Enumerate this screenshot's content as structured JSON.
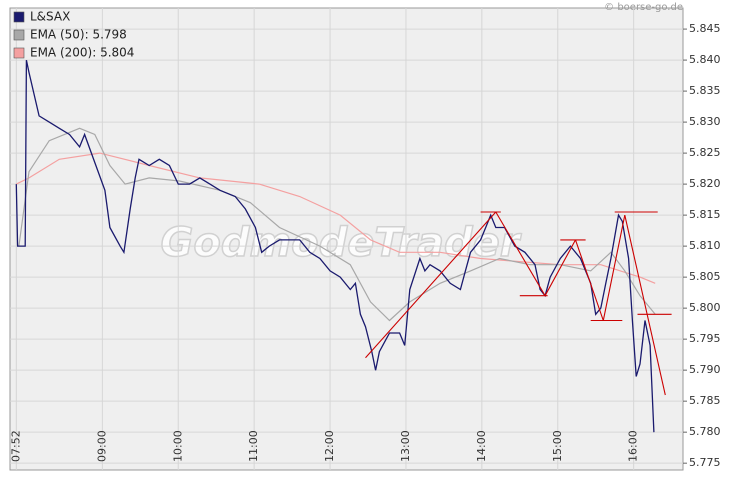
{
  "chart_data": {
    "type": "line",
    "watermark": "GodmodeTrader",
    "copyright": "© boerse-go.de",
    "xlim": [
      "07:47",
      "16:39"
    ],
    "xticks": [
      "07:52",
      "09:00",
      "10:00",
      "11:00",
      "12:00",
      "13:00",
      "14:00",
      "15:00",
      "16:00"
    ],
    "ylim": [
      5.7739,
      5.8484
    ],
    "yticks": [
      5.775,
      {
        "value": 5.78,
        "label": "5.780"
      },
      5.785,
      {
        "value": 5.79,
        "label": "5.790"
      },
      5.795,
      {
        "value": 5.8,
        "label": "5.800"
      },
      5.805,
      {
        "value": 5.81,
        "label": "5.810"
      },
      5.815,
      {
        "value": 5.82,
        "label": "5.820"
      },
      5.825,
      {
        "value": 5.83,
        "label": "5.830"
      },
      5.835,
      {
        "value": 5.84,
        "label": "5.840"
      },
      5.845
    ],
    "grid": true,
    "legend": "top-left",
    "series": [
      {
        "name": "L&SAX",
        "color": "#1a1a6e",
        "x": [
          "07:52",
          "07:53",
          "07:59",
          "08:00",
          "08:02",
          "08:10",
          "08:18",
          "08:26",
          "08:34",
          "08:42",
          "08:46",
          "09:02",
          "09:06",
          "09:14",
          "09:17",
          "09:22",
          "09:26",
          "09:29",
          "09:37",
          "09:45",
          "09:53",
          "10:00",
          "10:09",
          "10:17",
          "10:25",
          "10:33",
          "10:45",
          "10:53",
          "11:01",
          "11:06",
          "11:12",
          "11:20",
          "11:28",
          "11:36",
          "11:44",
          "11:52",
          "12:00",
          "12:08",
          "12:16",
          "12:20",
          "12:24",
          "12:28",
          "12:33",
          "12:36",
          "12:39",
          "12:47",
          "12:55",
          "12:59",
          "13:03",
          "13:11",
          "13:15",
          "13:19",
          "13:27",
          "13:35",
          "13:43",
          "13:47",
          "13:51",
          "13:59",
          "14:03",
          "14:07",
          "14:11",
          "14:18",
          "14:26",
          "14:34",
          "14:42",
          "14:46",
          "14:50",
          "14:54",
          "15:02",
          "15:10",
          "15:18",
          "15:26",
          "15:30",
          "15:34",
          "15:38",
          "15:42",
          "15:48",
          "15:51",
          "15:56",
          "15:59",
          "16:02",
          "16:05",
          "16:09",
          "16:13",
          "16:16"
        ],
        "values": [
          5.82,
          5.81,
          5.81,
          5.84,
          5.838,
          5.831,
          5.83,
          5.829,
          5.828,
          5.826,
          5.828,
          5.819,
          5.813,
          5.81,
          5.809,
          5.816,
          5.821,
          5.824,
          5.823,
          5.824,
          5.823,
          5.82,
          5.82,
          5.821,
          5.82,
          5.819,
          5.818,
          5.816,
          5.813,
          5.809,
          5.81,
          5.811,
          5.811,
          5.811,
          5.809,
          5.808,
          5.806,
          5.805,
          5.803,
          5.804,
          5.799,
          5.797,
          5.793,
          5.79,
          5.793,
          5.796,
          5.796,
          5.794,
          5.803,
          5.808,
          5.806,
          5.807,
          5.806,
          5.804,
          5.803,
          5.806,
          5.809,
          5.811,
          5.813,
          5.815,
          5.813,
          5.813,
          5.81,
          5.809,
          5.807,
          5.803,
          5.802,
          5.805,
          5.808,
          5.81,
          5.808,
          5.804,
          5.799,
          5.8,
          5.804,
          5.808,
          5.815,
          5.814,
          5.808,
          5.798,
          5.789,
          5.791,
          5.798,
          5.794,
          5.78
        ]
      },
      {
        "name": "EMA (50): 5.798",
        "color": "#a8a8a8",
        "x": [
          "07:54",
          "08:02",
          "08:18",
          "08:42",
          "08:54",
          "09:06",
          "09:18",
          "09:37",
          "10:01",
          "10:33",
          "10:57",
          "11:20",
          "11:52",
          "12:16",
          "12:32",
          "12:47",
          "13:03",
          "13:27",
          "13:51",
          "14:14",
          "14:38",
          "15:02",
          "15:26",
          "15:42",
          "15:53",
          "16:05",
          "16:17"
        ],
        "values": [
          5.81,
          5.822,
          5.827,
          5.829,
          5.828,
          5.823,
          5.82,
          5.821,
          5.8205,
          5.819,
          5.817,
          5.813,
          5.81,
          5.807,
          5.801,
          5.798,
          5.801,
          5.804,
          5.806,
          5.808,
          5.807,
          5.807,
          5.806,
          5.809,
          5.806,
          5.802,
          5.799
        ]
      },
      {
        "name": "EMA (200): 5.804",
        "color": "#f4a0a0",
        "x": [
          "07:52",
          "08:02",
          "08:26",
          "08:58",
          "09:37",
          "10:17",
          "11:04",
          "11:36",
          "12:08",
          "12:32",
          "12:55",
          "13:27",
          "13:59",
          "14:30",
          "15:02",
          "15:34",
          "16:05",
          "16:17"
        ],
        "values": [
          5.82,
          5.821,
          5.824,
          5.825,
          5.823,
          5.821,
          5.82,
          5.818,
          5.815,
          5.811,
          5.809,
          5.809,
          5.808,
          5.8075,
          5.807,
          5.807,
          5.805,
          5.804
        ]
      }
    ],
    "trend_lines": {
      "color": "#cc0000",
      "lines": [
        {
          "x": [
            "12:28",
            "14:11"
          ],
          "y": [
            5.792,
            5.8155
          ]
        },
        {
          "x": [
            "13:59",
            "14:15"
          ],
          "y": [
            5.8155,
            5.8155
          ]
        },
        {
          "x": [
            "14:11",
            "14:50"
          ],
          "y": [
            5.8155,
            5.802
          ]
        },
        {
          "x": [
            "14:30",
            "14:52"
          ],
          "y": [
            5.802,
            5.802
          ]
        },
        {
          "x": [
            "14:50",
            "15:14"
          ],
          "y": [
            5.802,
            5.811
          ]
        },
        {
          "x": [
            "15:02",
            "15:22"
          ],
          "y": [
            5.811,
            5.811
          ]
        },
        {
          "x": [
            "15:14",
            "15:36"
          ],
          "y": [
            5.811,
            5.798
          ]
        },
        {
          "x": [
            "15:26",
            "15:51"
          ],
          "y": [
            5.798,
            5.798
          ]
        },
        {
          "x": [
            "15:36",
            "15:53"
          ],
          "y": [
            5.798,
            5.815
          ]
        },
        {
          "x": [
            "15:45",
            "16:19"
          ],
          "y": [
            5.8155,
            5.8155
          ]
        },
        {
          "x": [
            "15:53",
            "16:25"
          ],
          "y": [
            5.815,
            5.786
          ]
        },
        {
          "x": [
            "16:03",
            "16:30"
          ],
          "y": [
            5.799,
            5.799
          ]
        }
      ]
    }
  }
}
